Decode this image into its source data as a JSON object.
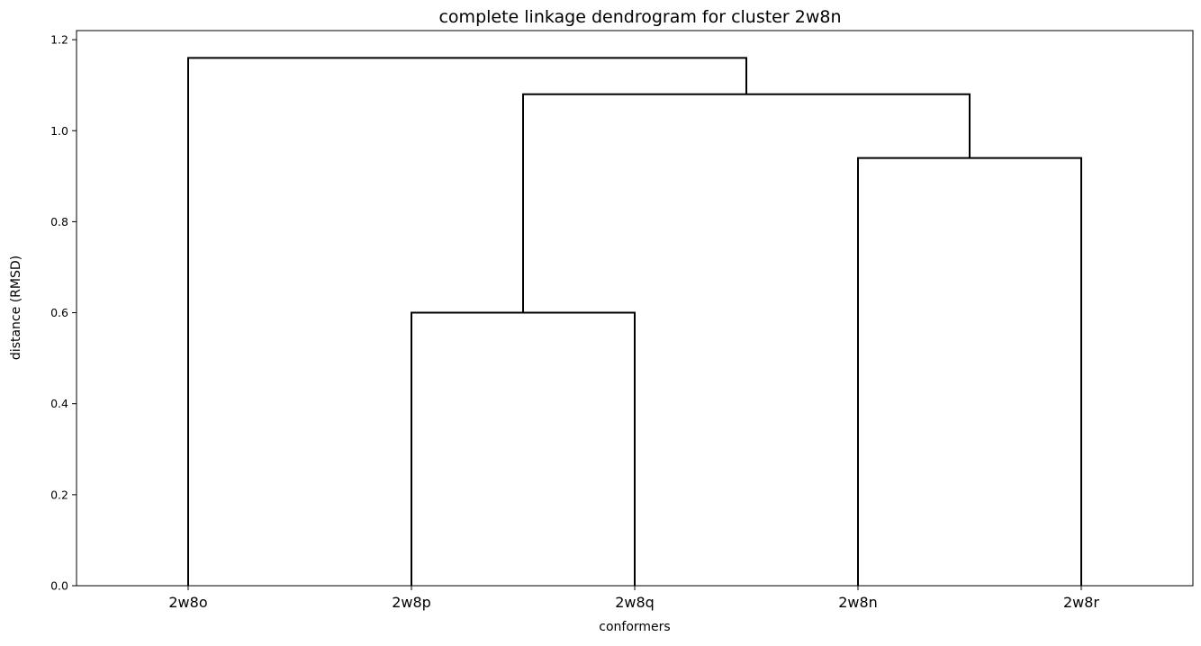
{
  "chart_data": {
    "type": "dendrogram",
    "title": "complete linkage dendrogram for cluster 2w8n",
    "xlabel": "conformers",
    "ylabel": "distance (RMSD)",
    "leaves": [
      "2w8o",
      "2w8p",
      "2w8q",
      "2w8n",
      "2w8r"
    ],
    "merges": [
      {
        "left": "2w8p",
        "right": "2w8q",
        "distance": 0.6
      },
      {
        "left": "2w8n",
        "right": "2w8r",
        "distance": 0.94
      },
      {
        "left": "2w8p+2w8q",
        "right": "2w8n+2w8r",
        "distance": 1.08
      },
      {
        "left": "2w8o",
        "right": "2w8p+2w8q+2w8n+2w8r",
        "distance": 1.16
      }
    ],
    "ylim": [
      0,
      1.22
    ],
    "yticks": [
      "0.0",
      "0.2",
      "0.4",
      "0.6",
      "0.8",
      "1.0",
      "1.2"
    ],
    "grid": false,
    "line_color": "#000000"
  }
}
